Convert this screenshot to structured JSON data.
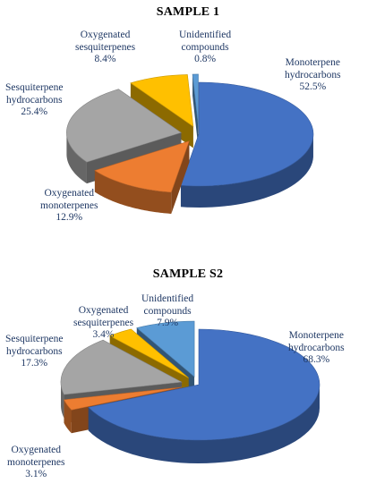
{
  "chart_data": [
    {
      "type": "pie",
      "title": "SAMPLE 1",
      "slices": [
        {
          "label_lines": [
            "Monoterpene",
            "hydrocarbons"
          ],
          "value_text": "52.5%",
          "value": 52.5,
          "color": "#4472c4",
          "exploded": false
        },
        {
          "label_lines": [
            "Oxygenated",
            "monoterpenes"
          ],
          "value_text": "12.9%",
          "value": 12.9,
          "color": "#ed7d31",
          "exploded": true
        },
        {
          "label_lines": [
            "Sesquiterpene",
            "hydrocarbons"
          ],
          "value_text": "25.4%",
          "value": 25.4,
          "color": "#a5a5a5",
          "exploded": true
        },
        {
          "label_lines": [
            "Oxygenated",
            "sesquiterpenes"
          ],
          "value_text": "8.4%",
          "value": 8.4,
          "color": "#ffc000",
          "exploded": true
        },
        {
          "label_lines": [
            "Unidentified",
            "compounds"
          ],
          "value_text": "0.8%",
          "value": 0.8,
          "color": "#5b9bd5",
          "exploded": true
        }
      ]
    },
    {
      "type": "pie",
      "title": "SAMPLE S2",
      "slices": [
        {
          "label_lines": [
            "Monoterpene",
            "hydrocarbons"
          ],
          "value_text": "68.3%",
          "value": 68.3,
          "color": "#4472c4",
          "exploded": false
        },
        {
          "label_lines": [
            "Oxygenated",
            "monoterpenes"
          ],
          "value_text": "3.1%",
          "value": 3.1,
          "color": "#ed7d31",
          "exploded": true
        },
        {
          "label_lines": [
            "Sesquiterpene",
            "hydrocarbons"
          ],
          "value_text": "17.3%",
          "value": 17.3,
          "color": "#a5a5a5",
          "exploded": true
        },
        {
          "label_lines": [
            "Oxygenated",
            "sesquiterpenes"
          ],
          "value_text": "3.4%",
          "value": 3.4,
          "color": "#ffc000",
          "exploded": true
        },
        {
          "label_lines": [
            "Unidentified",
            "compounds"
          ],
          "value_text": "7.9%",
          "value": 7.9,
          "color": "#5b9bd5",
          "exploded": true
        }
      ]
    }
  ]
}
